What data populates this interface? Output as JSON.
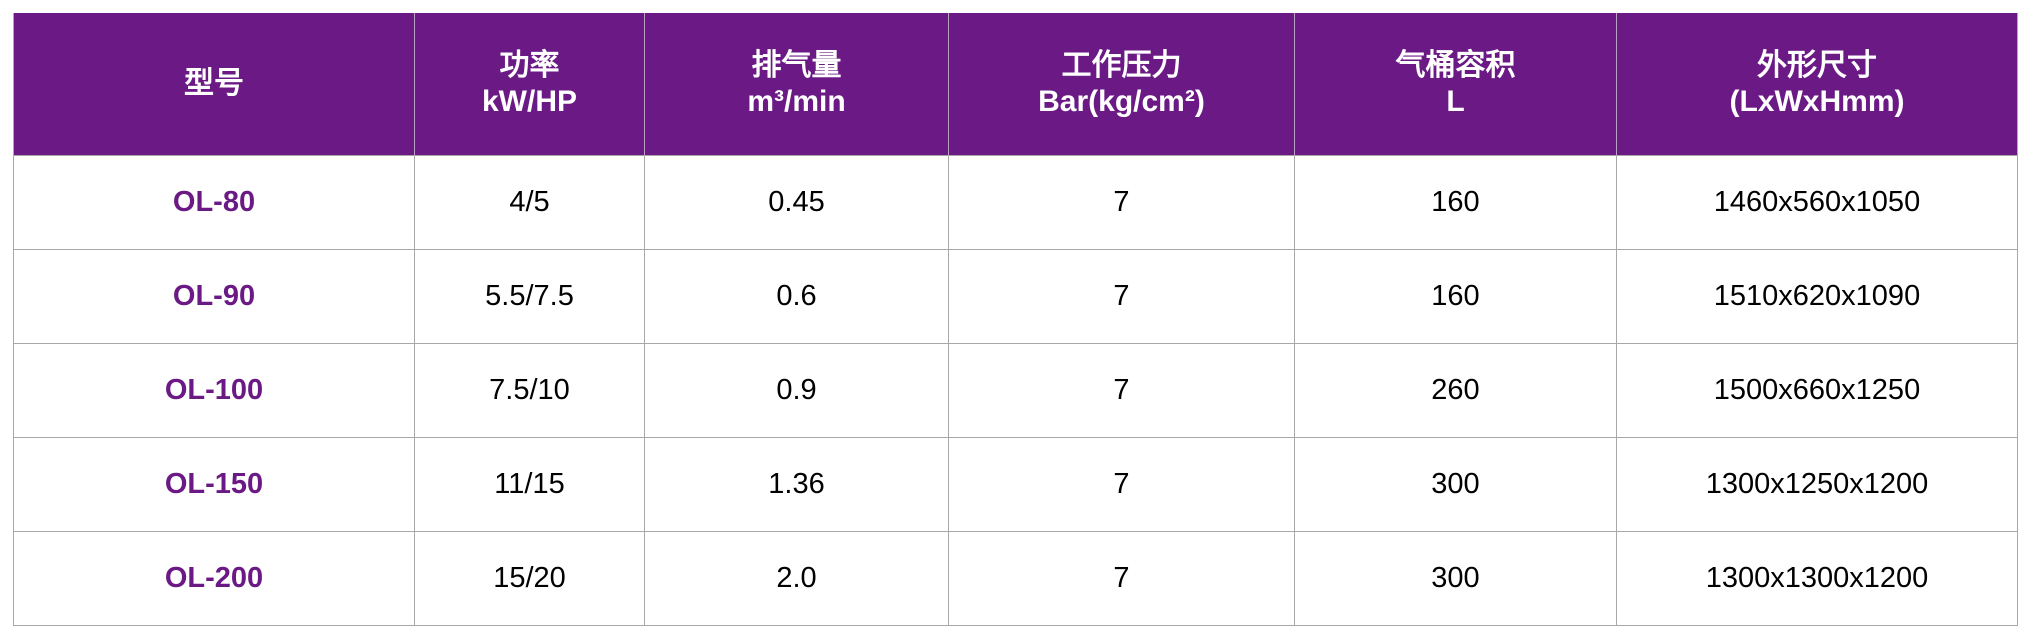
{
  "table": {
    "headers": [
      {
        "line1": "型号",
        "line2": ""
      },
      {
        "line1": "功率",
        "line2": "kW/HP"
      },
      {
        "line1": "排气量",
        "line2": "m³/min"
      },
      {
        "line1": "工作压力",
        "line2": "Bar(kg/cm²)"
      },
      {
        "line1": "气桶容积",
        "line2": "L"
      },
      {
        "line1": "外形尺寸",
        "line2": "(LxWxHmm)"
      }
    ],
    "rows": [
      [
        "OL-80",
        "4/5",
        "0.45",
        "7",
        "160",
        "1460x560x1050"
      ],
      [
        "OL-90",
        "5.5/7.5",
        "0.6",
        "7",
        "160",
        "1510x620x1090"
      ],
      [
        "OL-100",
        "7.5/10",
        "0.9",
        "7",
        "260",
        "1500x660x1250"
      ],
      [
        "OL-150",
        "11/15",
        "1.36",
        "7",
        "300",
        "1300x1250x1200"
      ],
      [
        "OL-200",
        "15/20",
        "2.0",
        "7",
        "300",
        "1300x1300x1200"
      ]
    ]
  },
  "colors": {
    "header_bg": "#6b1a85",
    "model_text": "#6b1a85"
  }
}
